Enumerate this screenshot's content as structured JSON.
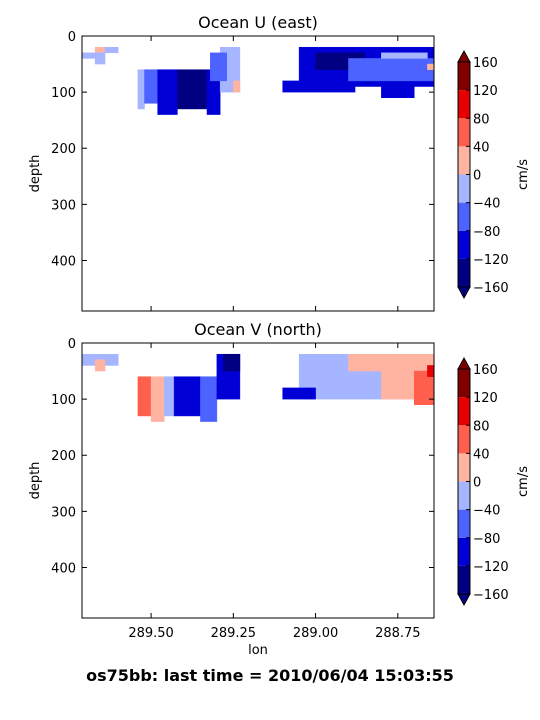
{
  "footer": "os75bb: last time = 2010/06/04 15:03:55",
  "colors": {
    "levels": [
      "#000080",
      "#0000d6",
      "#4d63ff",
      "#a6b5ff",
      "#ffb3a1",
      "#ff5f4d",
      "#e60000",
      "#800000"
    ],
    "background": "#ffffff"
  },
  "chart_data": [
    {
      "type": "heatmap",
      "title": "Ocean U (east)",
      "xlabel": "",
      "ylabel": "depth",
      "xlim": [
        289.71,
        288.64
      ],
      "ylim": [
        490,
        0
      ],
      "x_ticks": [
        289.5,
        289.25,
        289.0,
        288.75
      ],
      "x_tick_labels": [
        "",
        "",
        "",
        ""
      ],
      "y_ticks": [
        0,
        100,
        200,
        300,
        400
      ],
      "y_tick_labels": [
        "0",
        "100",
        "200",
        "300",
        "400"
      ],
      "colorbar": {
        "label": "cm/s",
        "ticks": [
          160,
          120,
          80,
          40,
          0,
          -40,
          -80,
          -120,
          -160
        ],
        "tick_labels": [
          "160",
          "120",
          "80",
          "40",
          "0",
          "−40",
          "−80",
          "−120",
          "−160"
        ],
        "levels": [
          -160,
          -120,
          -80,
          -40,
          0,
          40,
          80,
          120,
          160
        ],
        "extend": "both"
      },
      "cells": [
        {
          "x": [
            289.67,
            289.64
          ],
          "y": [
            20,
            30
          ],
          "bin": 4
        },
        {
          "x": [
            289.64,
            289.6
          ],
          "y": [
            20,
            30
          ],
          "bin": 3
        },
        {
          "x": [
            289.71,
            289.64
          ],
          "y": [
            30,
            40
          ],
          "bin": 3
        },
        {
          "x": [
            289.67,
            289.64
          ],
          "y": [
            40,
            50
          ],
          "bin": 3
        },
        {
          "x": [
            289.54,
            289.52
          ],
          "y": [
            60,
            130
          ],
          "bin": 3
        },
        {
          "x": [
            289.52,
            289.48
          ],
          "y": [
            60,
            120
          ],
          "bin": 2
        },
        {
          "x": [
            289.48,
            289.42
          ],
          "y": [
            60,
            140
          ],
          "bin": 1
        },
        {
          "x": [
            289.42,
            289.33
          ],
          "y": [
            60,
            130
          ],
          "bin": 0
        },
        {
          "x": [
            289.33,
            289.29
          ],
          "y": [
            60,
            140
          ],
          "bin": 1
        },
        {
          "x": [
            289.29,
            289.23
          ],
          "y": [
            20,
            100
          ],
          "bin": 3
        },
        {
          "x": [
            289.32,
            289.27
          ],
          "y": [
            30,
            80
          ],
          "bin": 2
        },
        {
          "x": [
            289.25,
            289.23
          ],
          "y": [
            80,
            100
          ],
          "bin": 4
        },
        {
          "x": [
            289.05,
            288.64
          ],
          "y": [
            20,
            90
          ],
          "bin": 1
        },
        {
          "x": [
            289.1,
            289.05
          ],
          "y": [
            80,
            100
          ],
          "bin": 1
        },
        {
          "x": [
            289.05,
            288.88
          ],
          "y": [
            90,
            100
          ],
          "bin": 1
        },
        {
          "x": [
            288.8,
            288.7
          ],
          "y": [
            90,
            110
          ],
          "bin": 1
        },
        {
          "x": [
            289.0,
            288.85
          ],
          "y": [
            30,
            60
          ],
          "bin": 0
        },
        {
          "x": [
            288.9,
            288.64
          ],
          "y": [
            40,
            80
          ],
          "bin": 2
        },
        {
          "x": [
            288.8,
            288.66
          ],
          "y": [
            30,
            40
          ],
          "bin": 3
        },
        {
          "x": [
            288.66,
            288.64
          ],
          "y": [
            50,
            60
          ],
          "bin": 4
        }
      ]
    },
    {
      "type": "heatmap",
      "title": "Ocean V (north)",
      "xlabel": "lon",
      "ylabel": "depth",
      "xlim": [
        289.71,
        288.64
      ],
      "ylim": [
        490,
        0
      ],
      "x_ticks": [
        289.5,
        289.25,
        289.0,
        288.75
      ],
      "x_tick_labels": [
        "289.50",
        "289.25",
        "289.00",
        "288.75"
      ],
      "y_ticks": [
        0,
        100,
        200,
        300,
        400
      ],
      "y_tick_labels": [
        "0",
        "100",
        "200",
        "300",
        "400"
      ],
      "colorbar": {
        "label": "cm/s",
        "ticks": [
          160,
          120,
          80,
          40,
          0,
          -40,
          -80,
          -120,
          -160
        ],
        "tick_labels": [
          "160",
          "120",
          "80",
          "40",
          "0",
          "−40",
          "−80",
          "−120",
          "−160"
        ],
        "levels": [
          -160,
          -120,
          -80,
          -40,
          0,
          40,
          80,
          120,
          160
        ],
        "extend": "both"
      },
      "cells": [
        {
          "x": [
            289.71,
            289.6
          ],
          "y": [
            20,
            40
          ],
          "bin": 3
        },
        {
          "x": [
            289.67,
            289.64
          ],
          "y": [
            30,
            50
          ],
          "bin": 4
        },
        {
          "x": [
            289.54,
            289.5
          ],
          "y": [
            60,
            130
          ],
          "bin": 5
        },
        {
          "x": [
            289.5,
            289.46
          ],
          "y": [
            60,
            140
          ],
          "bin": 4
        },
        {
          "x": [
            289.46,
            289.43
          ],
          "y": [
            60,
            130
          ],
          "bin": 3
        },
        {
          "x": [
            289.43,
            289.35
          ],
          "y": [
            60,
            130
          ],
          "bin": 1
        },
        {
          "x": [
            289.35,
            289.3
          ],
          "y": [
            60,
            140
          ],
          "bin": 2
        },
        {
          "x": [
            289.3,
            289.23
          ],
          "y": [
            20,
            100
          ],
          "bin": 1
        },
        {
          "x": [
            289.28,
            289.23
          ],
          "y": [
            20,
            50
          ],
          "bin": 0
        },
        {
          "x": [
            289.05,
            288.64
          ],
          "y": [
            20,
            100
          ],
          "bin": 3
        },
        {
          "x": [
            289.1,
            289.0
          ],
          "y": [
            80,
            100
          ],
          "bin": 1
        },
        {
          "x": [
            288.9,
            288.64
          ],
          "y": [
            20,
            50
          ],
          "bin": 4
        },
        {
          "x": [
            288.8,
            288.64
          ],
          "y": [
            50,
            100
          ],
          "bin": 4
        },
        {
          "x": [
            288.7,
            288.64
          ],
          "y": [
            50,
            110
          ],
          "bin": 5
        },
        {
          "x": [
            288.66,
            288.64
          ],
          "y": [
            40,
            60
          ],
          "bin": 6
        }
      ]
    }
  ]
}
